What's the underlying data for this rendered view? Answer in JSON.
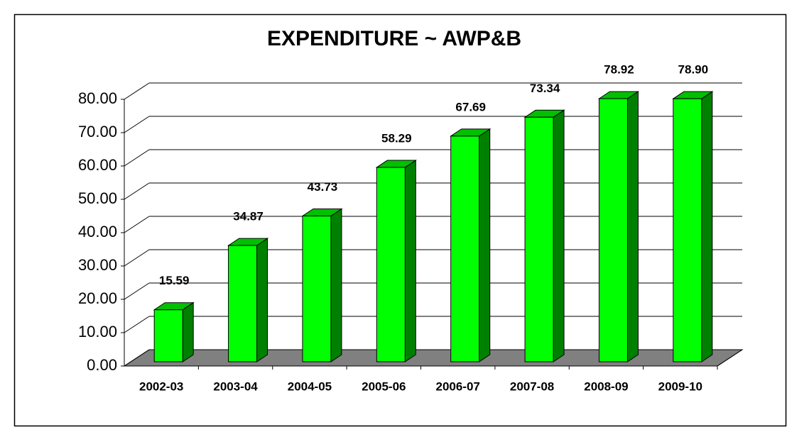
{
  "chart_data": {
    "type": "bar",
    "title": "EXPENDITURE ~ AWP&B",
    "categories": [
      "2002-03",
      "2003-04",
      "2004-05",
      "2005-06",
      "2006-07",
      "2007-08",
      "2008-09",
      "2009-10"
    ],
    "values": [
      15.59,
      34.87,
      43.73,
      58.29,
      67.69,
      73.34,
      78.92,
      78.9
    ],
    "value_labels": [
      "15.59",
      "34.87",
      "43.73",
      "58.29",
      "67.69",
      "73.34",
      "78.92",
      "78.90"
    ],
    "color": "#00ff00",
    "ylim": [
      0,
      80
    ],
    "yticks": [
      {
        "value": 0,
        "label": "0.00"
      },
      {
        "value": 10,
        "label": "10.00"
      },
      {
        "value": 20,
        "label": "20.00"
      },
      {
        "value": 30,
        "label": "30.00"
      },
      {
        "value": 40,
        "label": "40.00"
      },
      {
        "value": 50,
        "label": "50.00"
      },
      {
        "value": 60,
        "label": "60.00"
      },
      {
        "value": 70,
        "label": "70.00"
      },
      {
        "value": 80,
        "label": "80.00"
      }
    ],
    "grid": true
  }
}
